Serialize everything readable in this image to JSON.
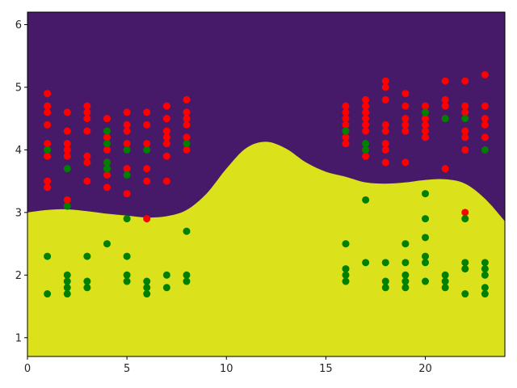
{
  "chart_data": {
    "type": "scatter",
    "title": "",
    "xlabel": "",
    "ylabel": "",
    "xlim": [
      0,
      24
    ],
    "ylim": [
      0.7,
      6.2
    ],
    "x_ticks": [
      0,
      5,
      10,
      15,
      20
    ],
    "y_ticks": [
      1,
      2,
      3,
      4,
      5,
      6
    ],
    "grid": false,
    "legend": "none",
    "colors": {
      "region_upper": "#471a69",
      "region_lower": "#dbe21c",
      "red_points": "#ff0000",
      "green_points": "#008000",
      "axes": "#000000"
    },
    "decision_boundary": {
      "x": [
        0,
        1,
        2,
        3,
        4,
        5,
        6,
        7,
        8,
        9,
        10,
        11,
        12,
        13,
        14,
        15,
        16,
        17,
        18,
        19,
        20,
        21,
        22,
        23,
        24
      ],
      "y": [
        3.0,
        3.04,
        3.05,
        3.02,
        2.98,
        2.95,
        2.92,
        2.94,
        3.04,
        3.3,
        3.7,
        4.03,
        4.13,
        4.02,
        3.8,
        3.65,
        3.57,
        3.48,
        3.46,
        3.48,
        3.52,
        3.53,
        3.46,
        3.22,
        2.86
      ]
    },
    "series": [
      {
        "color": "red",
        "points": [
          [
            1,
            4.9
          ],
          [
            1,
            4.7
          ],
          [
            1,
            4.6
          ],
          [
            1,
            4.4
          ],
          [
            1,
            4.1
          ],
          [
            1,
            3.9
          ],
          [
            1,
            3.5
          ],
          [
            1,
            3.4
          ],
          [
            2,
            4.6
          ],
          [
            2,
            4.3
          ],
          [
            2,
            4.1
          ],
          [
            2,
            4.0
          ],
          [
            2,
            3.9
          ],
          [
            2,
            3.2
          ],
          [
            3,
            4.7
          ],
          [
            3,
            4.6
          ],
          [
            3,
            4.5
          ],
          [
            3,
            4.3
          ],
          [
            3,
            3.9
          ],
          [
            3,
            3.8
          ],
          [
            3,
            3.5
          ],
          [
            4,
            4.5
          ],
          [
            4,
            4.2
          ],
          [
            4,
            4.0
          ],
          [
            4,
            3.8
          ],
          [
            4,
            3.6
          ],
          [
            4,
            3.4
          ],
          [
            5,
            4.6
          ],
          [
            5,
            4.4
          ],
          [
            5,
            4.3
          ],
          [
            5,
            4.1
          ],
          [
            5,
            3.7
          ],
          [
            5,
            3.3
          ],
          [
            6,
            4.6
          ],
          [
            6,
            4.4
          ],
          [
            6,
            4.1
          ],
          [
            6,
            3.7
          ],
          [
            6,
            3.5
          ],
          [
            6,
            2.9
          ],
          [
            7,
            4.7
          ],
          [
            7,
            4.5
          ],
          [
            7,
            4.3
          ],
          [
            7,
            4.2
          ],
          [
            7,
            4.1
          ],
          [
            7,
            3.9
          ],
          [
            7,
            3.5
          ],
          [
            8,
            4.8
          ],
          [
            8,
            4.6
          ],
          [
            8,
            4.5
          ],
          [
            8,
            4.4
          ],
          [
            8,
            4.2
          ],
          [
            8,
            4.0
          ],
          [
            16,
            4.7
          ],
          [
            16,
            4.6
          ],
          [
            16,
            4.5
          ],
          [
            16,
            4.4
          ],
          [
            16,
            4.3
          ],
          [
            16,
            4.2
          ],
          [
            16,
            4.1
          ],
          [
            17,
            4.8
          ],
          [
            17,
            4.7
          ],
          [
            17,
            4.6
          ],
          [
            17,
            4.5
          ],
          [
            17,
            4.4
          ],
          [
            17,
            4.3
          ],
          [
            17,
            4.0
          ],
          [
            17,
            3.9
          ],
          [
            18,
            5.1
          ],
          [
            18,
            5.0
          ],
          [
            18,
            4.8
          ],
          [
            18,
            4.4
          ],
          [
            18,
            4.3
          ],
          [
            18,
            4.1
          ],
          [
            18,
            4.0
          ],
          [
            18,
            3.8
          ],
          [
            19,
            4.9
          ],
          [
            19,
            4.7
          ],
          [
            19,
            4.5
          ],
          [
            19,
            4.4
          ],
          [
            19,
            4.3
          ],
          [
            19,
            3.8
          ],
          [
            20,
            4.7
          ],
          [
            20,
            4.5
          ],
          [
            20,
            4.4
          ],
          [
            20,
            4.3
          ],
          [
            20,
            4.2
          ],
          [
            21,
            5.1
          ],
          [
            21,
            4.8
          ],
          [
            21,
            4.7
          ],
          [
            21,
            4.5
          ],
          [
            21,
            3.7
          ],
          [
            22,
            5.1
          ],
          [
            22,
            4.7
          ],
          [
            22,
            4.6
          ],
          [
            22,
            4.3
          ],
          [
            22,
            4.2
          ],
          [
            22,
            4.0
          ],
          [
            22,
            3.0
          ],
          [
            23,
            5.2
          ],
          [
            23,
            4.7
          ],
          [
            23,
            4.5
          ],
          [
            23,
            4.4
          ],
          [
            23,
            4.2
          ]
        ]
      },
      {
        "color": "green",
        "points": [
          [
            1,
            4.0
          ],
          [
            1,
            2.3
          ],
          [
            1,
            1.7
          ],
          [
            2,
            3.7
          ],
          [
            2,
            3.1
          ],
          [
            2,
            2.0
          ],
          [
            2,
            1.9
          ],
          [
            2,
            1.8
          ],
          [
            2,
            1.7
          ],
          [
            3,
            2.3
          ],
          [
            3,
            1.9
          ],
          [
            3,
            1.8
          ],
          [
            4,
            4.3
          ],
          [
            4,
            4.1
          ],
          [
            4,
            3.8
          ],
          [
            4,
            3.7
          ],
          [
            4,
            2.5
          ],
          [
            5,
            4.0
          ],
          [
            5,
            3.6
          ],
          [
            5,
            2.9
          ],
          [
            5,
            2.3
          ],
          [
            5,
            2.0
          ],
          [
            5,
            1.9
          ],
          [
            6,
            4.0
          ],
          [
            6,
            1.9
          ],
          [
            6,
            1.8
          ],
          [
            6,
            1.7
          ],
          [
            7,
            2.0
          ],
          [
            7,
            1.8
          ],
          [
            8,
            4.1
          ],
          [
            8,
            2.7
          ],
          [
            8,
            2.0
          ],
          [
            8,
            1.9
          ],
          [
            16,
            4.3
          ],
          [
            16,
            2.5
          ],
          [
            16,
            2.1
          ],
          [
            16,
            2.0
          ],
          [
            16,
            1.9
          ],
          [
            17,
            4.1
          ],
          [
            17,
            4.0
          ],
          [
            17,
            3.2
          ],
          [
            17,
            2.2
          ],
          [
            18,
            2.2
          ],
          [
            18,
            1.9
          ],
          [
            18,
            1.8
          ],
          [
            19,
            2.5
          ],
          [
            19,
            2.2
          ],
          [
            19,
            2.0
          ],
          [
            19,
            1.9
          ],
          [
            19,
            1.8
          ],
          [
            20,
            4.6
          ],
          [
            20,
            3.3
          ],
          [
            20,
            2.9
          ],
          [
            20,
            2.6
          ],
          [
            20,
            2.3
          ],
          [
            20,
            2.2
          ],
          [
            20,
            1.9
          ],
          [
            21,
            4.5
          ],
          [
            21,
            2.0
          ],
          [
            21,
            1.9
          ],
          [
            21,
            1.8
          ],
          [
            22,
            4.5
          ],
          [
            22,
            2.9
          ],
          [
            22,
            2.2
          ],
          [
            22,
            2.1
          ],
          [
            22,
            1.7
          ],
          [
            23,
            4.0
          ],
          [
            23,
            2.2
          ],
          [
            23,
            2.1
          ],
          [
            23,
            2.0
          ],
          [
            23,
            1.8
          ],
          [
            23,
            1.7
          ]
        ]
      }
    ]
  }
}
